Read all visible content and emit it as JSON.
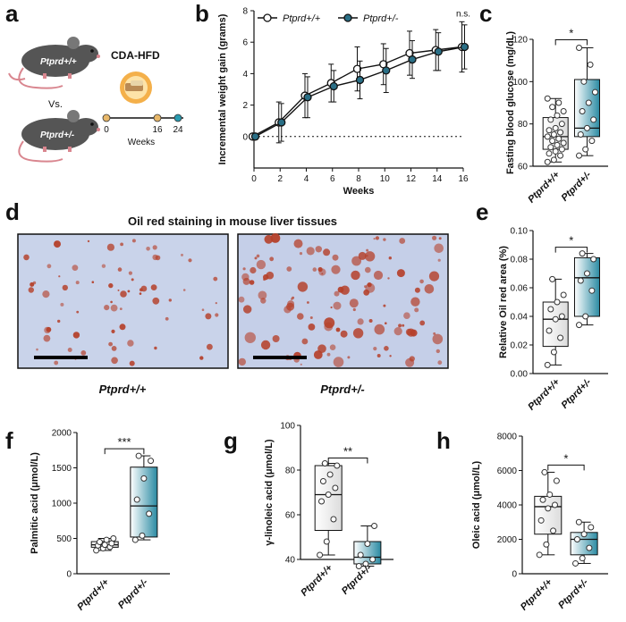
{
  "panel_labels": {
    "a": "a",
    "b": "b",
    "c": "c",
    "d": "d",
    "e": "e",
    "f": "f",
    "g": "g",
    "h": "h"
  },
  "colors": {
    "wt_fill": "#ebebeb",
    "het_fill": "#2b8ba3",
    "het_marker": "#2a6f86",
    "mouse": "#555555",
    "mouse_tail": "#d9868f",
    "timeline_0": "#e8b86a",
    "timeline_16": "#e8b86a",
    "timeline_24": "#2a9bb0",
    "tissue_bg": "#c9d3ea",
    "lipid": "#b5402a"
  },
  "schematic": {
    "mouse_wt_label": "Ptprd+/+",
    "vs": "Vs.",
    "mouse_het_label": "Ptprd+/-",
    "diet": "CDA-HFD",
    "timeline_ticks": [
      "0",
      "16",
      "24"
    ],
    "timeline_label": "Weeks"
  },
  "histology": {
    "title": "Oil red staining in mouse liver tissues",
    "left_label": "Ptprd+/+",
    "right_label": "Ptprd+/-"
  },
  "chart_data": [
    {
      "id": "b",
      "type": "line",
      "xlabel": "Weeks",
      "ylabel": "Incremental weight gain (grams)",
      "xlim": [
        0,
        16
      ],
      "ylim": [
        -2,
        8
      ],
      "xticks": [
        0,
        2,
        4,
        6,
        8,
        10,
        12,
        14,
        16
      ],
      "yticks": [
        0,
        2,
        4,
        6,
        8
      ],
      "x": [
        0,
        2,
        4,
        6,
        8,
        10,
        12,
        14,
        16
      ],
      "series": [
        {
          "name": "Ptprd+/+",
          "values": [
            0,
            0.9,
            2.6,
            3.4,
            4.3,
            4.6,
            5.3,
            5.5,
            5.7
          ],
          "errors": [
            0,
            1.3,
            1.4,
            1.2,
            1.4,
            1.3,
            1.4,
            1.3,
            1.6
          ]
        },
        {
          "name": "Ptprd+/-",
          "values": [
            0,
            0.9,
            2.5,
            3.2,
            3.6,
            4.2,
            4.9,
            5.4,
            5.7
          ],
          "errors": [
            0,
            1.2,
            1.3,
            1.0,
            1.2,
            1.4,
            1.2,
            1.2,
            1.4
          ]
        }
      ],
      "reference_line": 0,
      "annotation": "n.s."
    },
    {
      "id": "c",
      "type": "box",
      "ylabel": "Fasting blood glucose (mg/dL)",
      "ylim": [
        60,
        120
      ],
      "yticks": [
        60,
        80,
        100,
        120
      ],
      "categories": [
        "Ptprd+/+",
        "Ptprd+/-"
      ],
      "boxes": [
        {
          "min": 62,
          "q1": 68,
          "median": 74,
          "q3": 83,
          "max": 92,
          "points": [
            62,
            63,
            65,
            66,
            67,
            68,
            69,
            70,
            71,
            72,
            73,
            74,
            75,
            76,
            77,
            78,
            80,
            82,
            84,
            86,
            88,
            90,
            92
          ]
        },
        {
          "min": 65,
          "q1": 74,
          "median": 78,
          "q3": 101,
          "max": 116,
          "points": [
            65,
            68,
            72,
            75,
            78,
            82,
            86,
            90,
            95,
            100,
            108,
            116
          ]
        }
      ],
      "significance": "*"
    },
    {
      "id": "e",
      "type": "box",
      "ylabel": "Relative Oil red area (%)",
      "ylim": [
        0,
        0.1
      ],
      "yticks": [
        "0.00",
        "0.02",
        "0.04",
        "0.06",
        "0.08",
        "0.10"
      ],
      "categories": [
        "Ptprd+/+",
        "Ptprd+/-"
      ],
      "boxes": [
        {
          "min": 0.006,
          "q1": 0.019,
          "median": 0.038,
          "q3": 0.05,
          "max": 0.066,
          "points": [
            0.006,
            0.015,
            0.025,
            0.03,
            0.038,
            0.04,
            0.045,
            0.05,
            0.055,
            0.066
          ]
        },
        {
          "min": 0.034,
          "q1": 0.04,
          "median": 0.067,
          "q3": 0.081,
          "max": 0.084,
          "points": [
            0.034,
            0.04,
            0.058,
            0.065,
            0.07,
            0.08,
            0.084
          ]
        }
      ],
      "significance": "*"
    },
    {
      "id": "f",
      "type": "box",
      "ylabel": "Palmitic acid (μmol/L)",
      "ylim": [
        0,
        2000
      ],
      "yticks": [
        0,
        500,
        1000,
        1500,
        2000
      ],
      "categories": [
        "Ptprd+/+",
        "Ptprd+/-"
      ],
      "boxes": [
        {
          "min": 330,
          "q1": 375,
          "median": 410,
          "q3": 455,
          "max": 500,
          "points": [
            330,
            360,
            380,
            400,
            410,
            430,
            450,
            480,
            500
          ]
        },
        {
          "min": 480,
          "q1": 520,
          "median": 960,
          "q3": 1510,
          "max": 1670,
          "points": [
            480,
            540,
            850,
            1050,
            1350,
            1600,
            1670
          ]
        }
      ],
      "significance": "***"
    },
    {
      "id": "g",
      "type": "box",
      "ylabel": "γ-linoleic acid (μmol/L)",
      "ylim": [
        40,
        100
      ],
      "yticks": [
        40,
        60,
        80,
        100
      ],
      "categories": [
        "Ptprd+/+",
        "Ptprd+/-"
      ],
      "boxes": [
        {
          "min": 42,
          "q1": 53,
          "median": 69,
          "q3": 82,
          "max": 83,
          "points": [
            42,
            48,
            58,
            66,
            69,
            72,
            75,
            78,
            82,
            83
          ]
        },
        {
          "min": 37,
          "q1": 38,
          "median": 41,
          "q3": 48,
          "max": 55,
          "points": [
            37,
            38,
            40,
            42,
            47,
            55
          ]
        }
      ],
      "significance": "**"
    },
    {
      "id": "h",
      "type": "box",
      "ylabel": "Oleic acid (μmol/L)",
      "ylim": [
        0,
        8000
      ],
      "yticks": [
        0,
        2000,
        4000,
        6000,
        8000
      ],
      "categories": [
        "Ptprd+/+",
        "Ptprd+/-"
      ],
      "boxes": [
        {
          "min": 1100,
          "q1": 2300,
          "median": 3900,
          "q3": 4500,
          "max": 5900,
          "points": [
            1100,
            1700,
            2500,
            3100,
            3800,
            4000,
            4300,
            4600,
            5400,
            5900
          ]
        },
        {
          "min": 600,
          "q1": 1100,
          "median": 2000,
          "q3": 2400,
          "max": 3000,
          "points": [
            600,
            900,
            1500,
            2000,
            2300,
            2700,
            3000
          ]
        }
      ],
      "significance": "*"
    }
  ]
}
